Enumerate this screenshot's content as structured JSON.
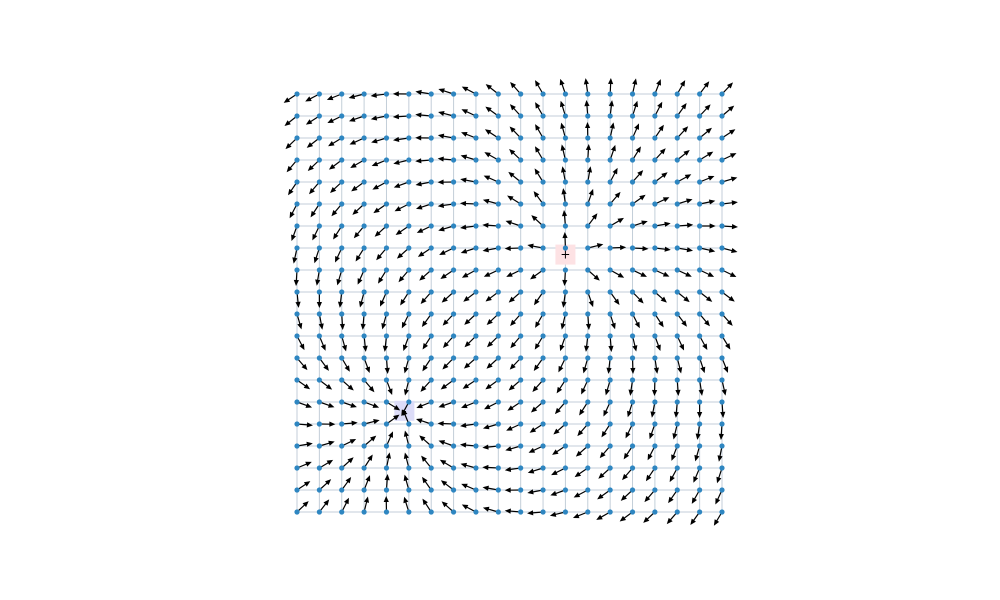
{
  "diagram": {
    "type": "vector-field",
    "grid": {
      "columns": 20,
      "rows": 20
    },
    "colors": {
      "grid_line": "#c3ced8",
      "node": "#2e86c1",
      "arrow": "#000000",
      "positive_box": "#fde2e4",
      "negative_box": "#dcdcf8"
    },
    "charges": [
      {
        "sign": "positive",
        "label": "+",
        "col": 12,
        "row": 7.3
      },
      {
        "sign": "negative",
        "label": "-",
        "col": 4.8,
        "row": 14.4
      }
    ]
  }
}
